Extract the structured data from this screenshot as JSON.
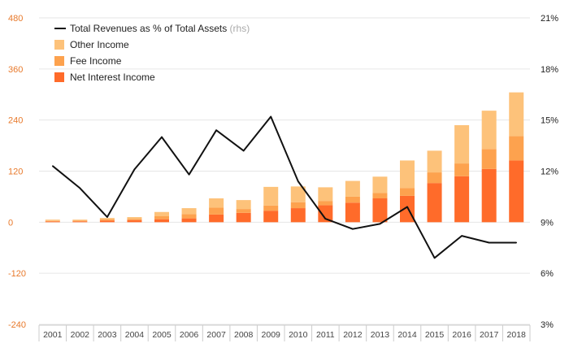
{
  "chart_data": {
    "type": "bar",
    "stacked": true,
    "categories": [
      "2001",
      "2002",
      "2003",
      "2004",
      "2005",
      "2006",
      "2007",
      "2008",
      "2009",
      "2010",
      "2011",
      "2012",
      "2013",
      "2014",
      "2015",
      "2016",
      "2017",
      "2018"
    ],
    "series": [
      {
        "name": "Net Interest Income",
        "color": "#ff6b2a",
        "values": [
          2,
          2,
          4,
          5,
          7,
          9,
          18,
          22,
          27,
          33,
          40,
          46,
          56,
          62,
          92,
          108,
          125,
          145
        ]
      },
      {
        "name": "Fee Income",
        "color": "#fda24e",
        "values": [
          1,
          2,
          3,
          3,
          7,
          10,
          16,
          9,
          12,
          14,
          10,
          14,
          13,
          18,
          25,
          30,
          47,
          57
        ]
      },
      {
        "name": "Other Income",
        "color": "#fdc27a",
        "values": [
          3,
          2,
          3,
          4,
          10,
          14,
          22,
          21,
          44,
          37,
          32,
          37,
          38,
          65,
          51,
          90,
          90,
          103
        ]
      }
    ],
    "line_series": {
      "name": "Total Revenues as % of Total Assets",
      "suffix": "(rhs)",
      "color": "#111111",
      "axis": "right",
      "values": [
        12.3,
        11.0,
        9.3,
        12.1,
        14.0,
        11.8,
        14.4,
        13.2,
        15.2,
        11.4,
        9.2,
        8.6,
        8.9,
        9.9,
        6.9,
        8.2,
        7.8,
        7.8
      ]
    },
    "y_left": {
      "min": -240,
      "max": 480,
      "ticks": [
        "480",
        "360",
        "240",
        "120",
        "0",
        "-120",
        "-240"
      ]
    },
    "y_right": {
      "min": 3,
      "max": 21,
      "ticks": [
        "21%",
        "18%",
        "15%",
        "12%",
        "9%",
        "6%",
        "3%"
      ]
    },
    "legend": {
      "placement": "top-left",
      "items": [
        {
          "label": "Total Revenues as % of Total Assets",
          "suffix": "(rhs)",
          "kind": "line",
          "color": "#111111"
        },
        {
          "label": "Other Income",
          "kind": "box",
          "color": "#fdc27a"
        },
        {
          "label": "Fee Income",
          "kind": "box",
          "color": "#fda24e"
        },
        {
          "label": "Net Interest Income",
          "kind": "box",
          "color": "#ff6b2a"
        }
      ]
    },
    "grid": true,
    "colors": {
      "left_axis": "#e8792b",
      "right_axis": "#222222",
      "grid": "#e6e6e6",
      "axis_line": "#cccccc"
    }
  }
}
